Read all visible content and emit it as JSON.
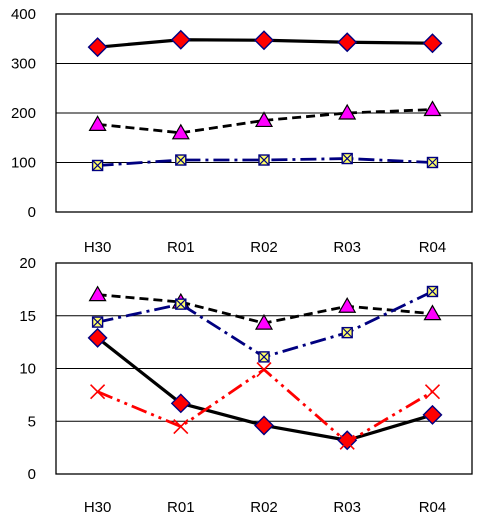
{
  "chart_data": [
    {
      "type": "line",
      "categories": [
        "H30",
        "R01",
        "R02",
        "R03",
        "R04"
      ],
      "ylim": [
        0,
        400
      ],
      "yticks": [
        0,
        100,
        200,
        300,
        400
      ],
      "grid": "horizontal",
      "legend": "none",
      "series": [
        {
          "values": [
            333,
            348,
            347,
            343,
            341
          ],
          "color": "#000000",
          "dash": "solid",
          "marker": "diamond",
          "marker_fill": "#ff0000",
          "marker_stroke": "#000080"
        },
        {
          "values": [
            177,
            160,
            185,
            200,
            207
          ],
          "color": "#000000",
          "dash": "dashed",
          "marker": "triangle",
          "marker_fill": "#ff00ff",
          "marker_stroke": "#000000"
        },
        {
          "values": [
            94,
            105,
            105,
            108,
            100
          ],
          "color": "#000080",
          "dash": "dashdot",
          "marker": "square-x",
          "marker_fill": "#ffff66",
          "marker_stroke": "#000080"
        }
      ]
    },
    {
      "type": "line",
      "categories": [
        "H30",
        "R01",
        "R02",
        "R03",
        "R04"
      ],
      "ylim": [
        0,
        20
      ],
      "yticks": [
        0,
        5,
        10,
        15,
        20
      ],
      "grid": "horizontal",
      "legend": "none",
      "series": [
        {
          "values": [
            17.0,
            16.3,
            14.3,
            15.9,
            15.2
          ],
          "color": "#000000",
          "dash": "dashed",
          "marker": "triangle",
          "marker_fill": "#ff00ff",
          "marker_stroke": "#000000"
        },
        {
          "values": [
            14.4,
            16.1,
            11.1,
            13.4,
            17.3
          ],
          "color": "#000080",
          "dash": "dashdot",
          "marker": "square-x",
          "marker_fill": "#ffff66",
          "marker_stroke": "#000080"
        },
        {
          "values": [
            12.9,
            6.7,
            4.6,
            3.2,
            5.6
          ],
          "color": "#000000",
          "dash": "solid",
          "marker": "diamond",
          "marker_fill": "#ff0000",
          "marker_stroke": "#000080"
        },
        {
          "values": [
            7.8,
            4.5,
            9.9,
            3.0,
            7.8
          ],
          "color": "#ff0000",
          "dash": "dashdotdot",
          "marker": "x",
          "marker_fill": "none",
          "marker_stroke": "#ff0000"
        }
      ]
    }
  ]
}
